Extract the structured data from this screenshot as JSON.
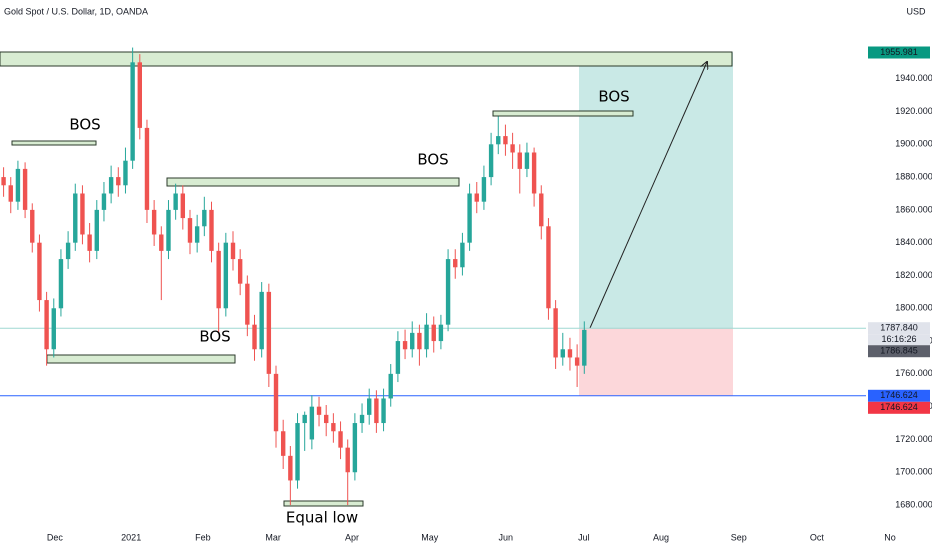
{
  "chart_data": {
    "type": "candlestick",
    "title": "Gold Spot / U.S. Dollar, 1D, OANDA",
    "currency": "USD",
    "x": [
      1,
      3,
      5,
      7,
      9,
      11,
      13,
      15,
      17,
      19,
      21,
      23,
      25,
      27,
      29,
      31,
      33,
      35,
      37,
      39,
      41,
      43,
      45,
      47,
      49,
      51,
      53,
      55,
      57,
      59,
      61,
      63,
      65,
      67,
      69,
      71,
      73,
      75,
      77,
      79,
      81,
      83,
      85,
      87,
      89,
      91,
      93,
      95,
      97,
      99,
      101,
      103,
      105,
      107,
      109,
      111,
      113,
      115,
      117,
      119,
      121,
      123,
      125,
      127,
      129,
      131,
      133,
      135,
      137,
      139,
      141,
      143,
      145,
      147,
      149,
      151,
      153,
      155,
      157,
      159,
      161,
      163
    ],
    "open": [
      1880,
      1875,
      1865,
      1885,
      1860,
      1840,
      1805,
      1775,
      1800,
      1830,
      1840,
      1870,
      1845,
      1835,
      1860,
      1870,
      1880,
      1875,
      1890,
      1950,
      1910,
      1860,
      1845,
      1835,
      1860,
      1870,
      1855,
      1840,
      1850,
      1860,
      1835,
      1800,
      1840,
      1830,
      1815,
      1790,
      1775,
      1810,
      1760,
      1725,
      1710,
      1695,
      1730,
      1720,
      1740,
      1735,
      1730,
      1725,
      1715,
      1700,
      1730,
      1735,
      1745,
      1730,
      1745,
      1760,
      1780,
      1775,
      1785,
      1775,
      1790,
      1780,
      1790,
      1830,
      1825,
      1840,
      1870,
      1865,
      1880,
      1900,
      1905,
      1900,
      1895,
      1885,
      1895,
      1870,
      1850,
      1800,
      1770,
      1775,
      1770,
      1765
    ],
    "high": [
      1886,
      1880,
      1890,
      1889,
      1864,
      1845,
      1810,
      1806,
      1836,
      1847,
      1876,
      1875,
      1852,
      1866,
      1877,
      1887,
      1886,
      1898,
      1959,
      1955,
      1915,
      1866,
      1850,
      1866,
      1876,
      1875,
      1860,
      1857,
      1868,
      1865,
      1840,
      1846,
      1847,
      1836,
      1820,
      1796,
      1816,
      1815,
      1765,
      1732,
      1716,
      1736,
      1737,
      1747,
      1746,
      1741,
      1736,
      1731,
      1720,
      1736,
      1742,
      1751,
      1750,
      1751,
      1766,
      1786,
      1787,
      1792,
      1790,
      1797,
      1795,
      1796,
      1836,
      1836,
      1846,
      1876,
      1877,
      1887,
      1907,
      1917,
      1912,
      1907,
      1900,
      1901,
      1898,
      1875,
      1855,
      1805,
      1785,
      1782,
      1778,
      1792
    ],
    "low": [
      1868,
      1858,
      1860,
      1855,
      1834,
      1798,
      1765,
      1770,
      1795,
      1824,
      1835,
      1839,
      1828,
      1830,
      1853,
      1864,
      1868,
      1870,
      1885,
      1903,
      1852,
      1838,
      1805,
      1830,
      1854,
      1848,
      1833,
      1834,
      1844,
      1828,
      1785,
      1795,
      1823,
      1808,
      1783,
      1768,
      1770,
      1752,
      1715,
      1702,
      1680,
      1690,
      1713,
      1714,
      1728,
      1722,
      1718,
      1708,
      1680,
      1695,
      1724,
      1729,
      1724,
      1725,
      1740,
      1755,
      1769,
      1770,
      1765,
      1770,
      1773,
      1775,
      1786,
      1818,
      1820,
      1835,
      1858,
      1860,
      1875,
      1894,
      1893,
      1885,
      1870,
      1880,
      1862,
      1842,
      1793,
      1763,
      1765,
      1762,
      1752,
      1760
    ],
    "close": [
      1875,
      1865,
      1885,
      1860,
      1840,
      1805,
      1775,
      1800,
      1830,
      1840,
      1870,
      1845,
      1835,
      1860,
      1870,
      1880,
      1875,
      1890,
      1950,
      1910,
      1860,
      1845,
      1835,
      1860,
      1870,
      1855,
      1840,
      1850,
      1860,
      1835,
      1800,
      1840,
      1830,
      1815,
      1790,
      1775,
      1810,
      1760,
      1725,
      1710,
      1695,
      1730,
      1735,
      1740,
      1735,
      1730,
      1725,
      1715,
      1700,
      1730,
      1735,
      1745,
      1730,
      1745,
      1760,
      1780,
      1775,
      1785,
      1775,
      1790,
      1780,
      1790,
      1830,
      1825,
      1840,
      1870,
      1865,
      1880,
      1900,
      1905,
      1900,
      1895,
      1885,
      1895,
      1870,
      1850,
      1800,
      1770,
      1775,
      1770,
      1765,
      1786.845
    ],
    "up_color": "#26a69a",
    "down_color": "#ef5350",
    "xlim": [
      0,
      260
    ],
    "xticks": [
      {
        "value": 15.3,
        "label": "Dec"
      },
      {
        "value": 36.6,
        "label": "2021"
      },
      {
        "value": 56.6,
        "label": "Feb"
      },
      {
        "value": 76.2,
        "label": "Mar"
      },
      {
        "value": 98.2,
        "label": "Apr"
      },
      {
        "value": 119.9,
        "label": "May"
      },
      {
        "value": 141.1,
        "label": "Jun"
      },
      {
        "value": 162.9,
        "label": "Jul"
      },
      {
        "value": 184.4,
        "label": "Aug"
      },
      {
        "value": 206.1,
        "label": "Sep"
      },
      {
        "value": 227.9,
        "label": "Oct"
      },
      {
        "value": 248.3,
        "label": "No"
      }
    ],
    "ylim": [
      1666,
      1988
    ],
    "yticks": [
      {
        "value": 1680,
        "label": "1680.000"
      },
      {
        "value": 1700,
        "label": "1700.000"
      },
      {
        "value": 1720,
        "label": "1720.000"
      },
      {
        "value": 1740,
        "label": "1740.000"
      },
      {
        "value": 1760,
        "label": "1760.000"
      },
      {
        "value": 1780,
        "label": "1780.000"
      },
      {
        "value": 1800,
        "label": "1800.000"
      },
      {
        "value": 1820,
        "label": "1820.000"
      },
      {
        "value": 1840,
        "label": "1840.000"
      },
      {
        "value": 1860,
        "label": "1860.000"
      },
      {
        "value": 1880,
        "label": "1880.000"
      },
      {
        "value": 1900,
        "label": "1900.000"
      },
      {
        "value": 1920,
        "label": "1920.000"
      },
      {
        "value": 1940,
        "label": "1940.000"
      }
    ],
    "grid": false,
    "position": {
      "target": {
        "value": 1955.981,
        "label": "1955.981"
      },
      "entry": {
        "value": 1787.84,
        "label": "1787.840"
      },
      "stop": {
        "value": 1746.624,
        "label": "1746.624"
      },
      "countdown": "16:16:26"
    },
    "last_price": {
      "value": 1786.845,
      "label": "1786.845"
    },
    "horizontal_line": {
      "value": 1746.624,
      "label": "1746.624"
    },
    "annotations": [
      "BOS",
      "BOS",
      "BOS",
      "BOS",
      "Equal low"
    ]
  }
}
